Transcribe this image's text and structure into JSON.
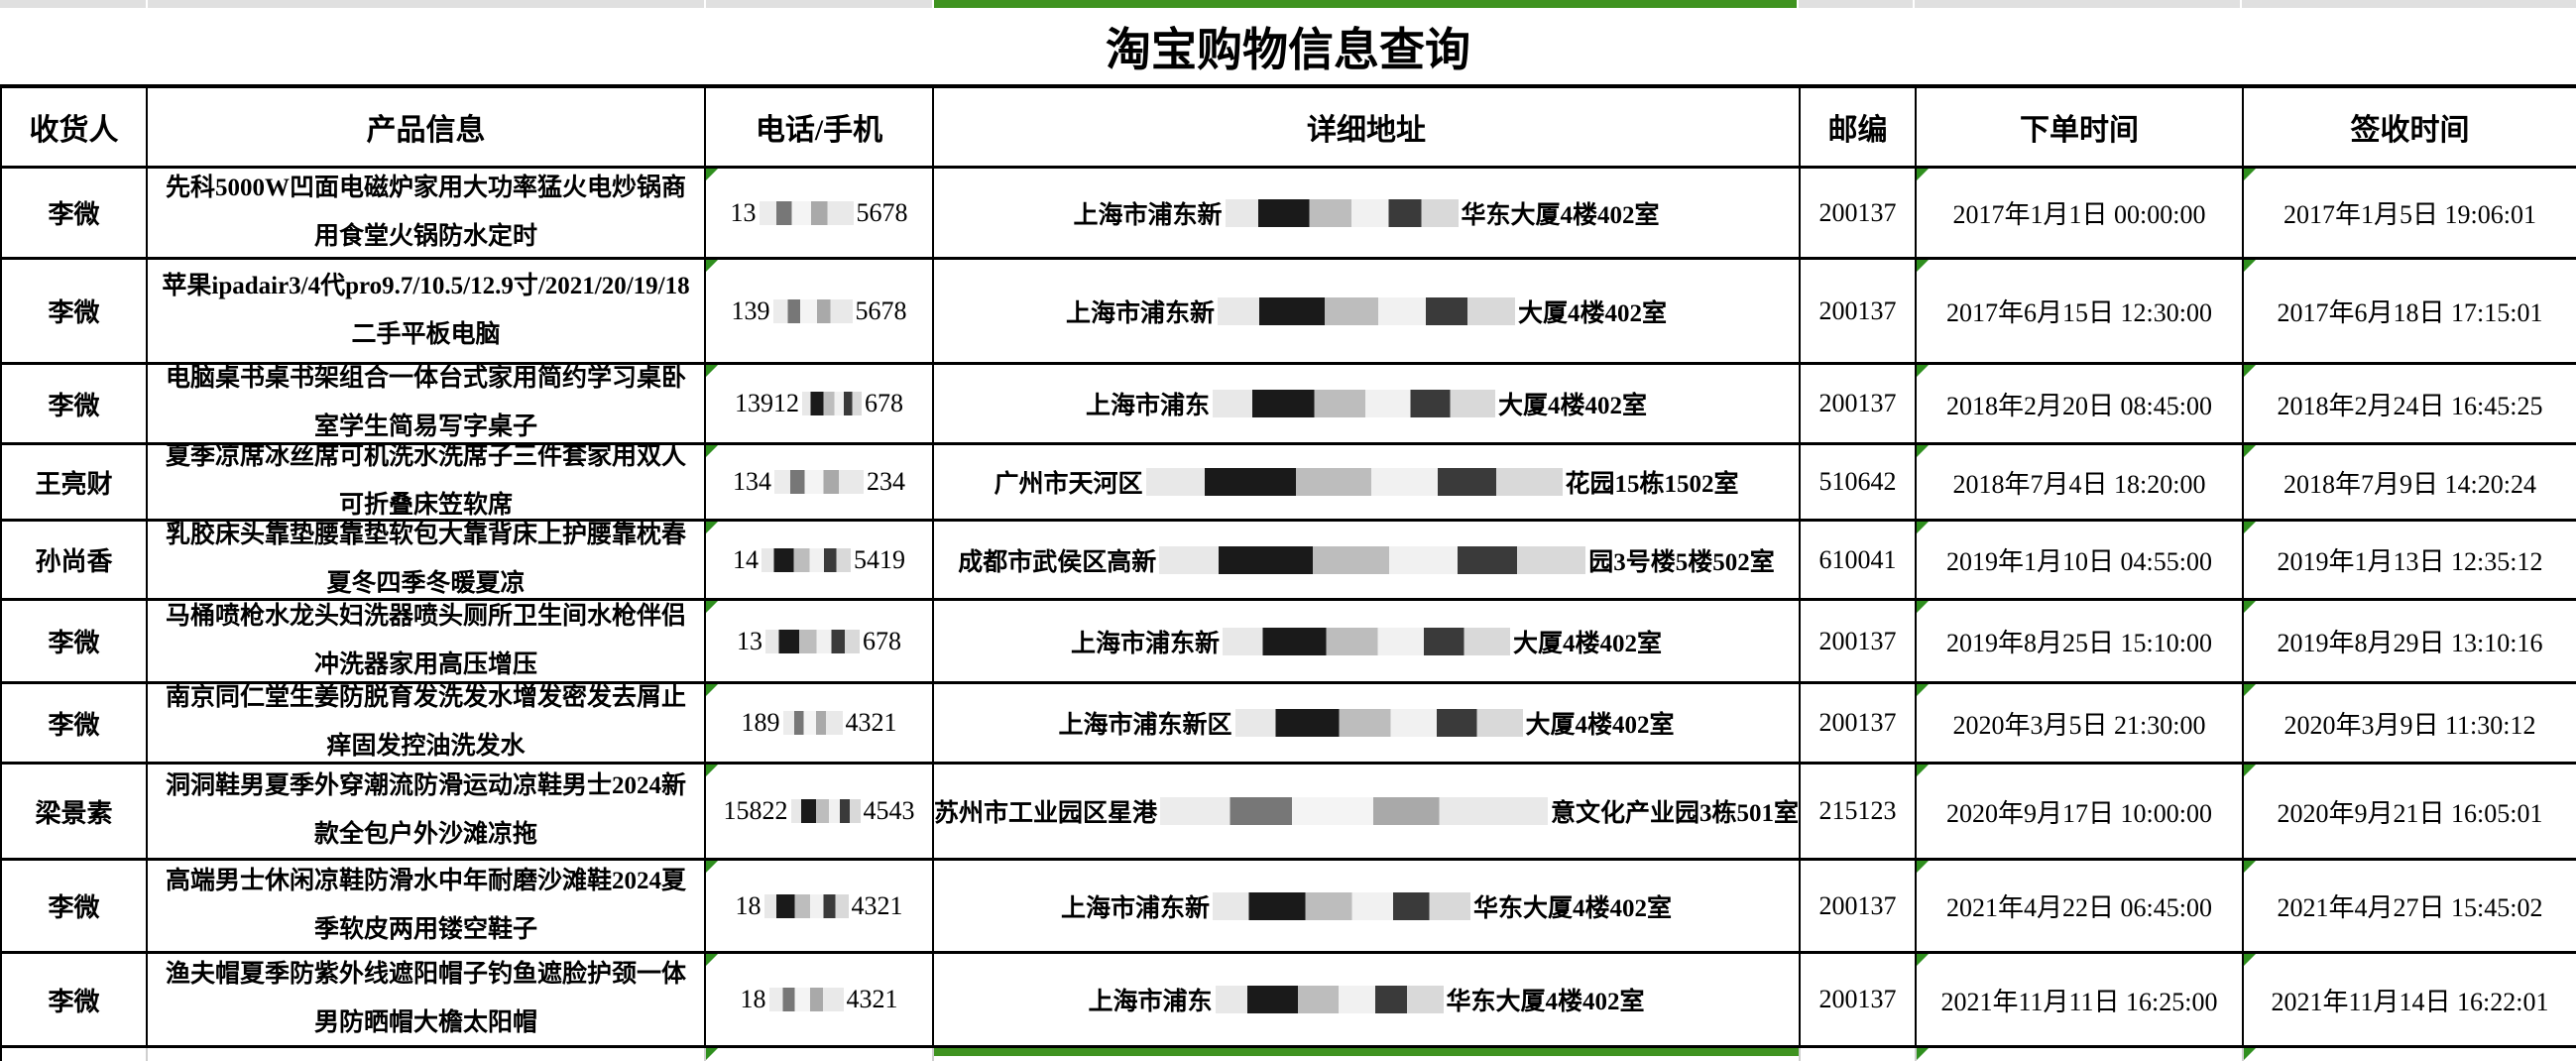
{
  "sheet": {
    "title": "淘宝购物信息查询",
    "accent_green": "#3f9320",
    "strip_gray": "#e0e0e0"
  },
  "columns": [
    "收货人",
    "产品信息",
    "电话/手机",
    "详细地址",
    "邮编",
    "下单时间",
    "签收时间"
  ],
  "rows": [
    {
      "recipient": "李微",
      "product": "先科5000W凹面电磁炉家用大功率猛火电炒锅商用食堂火锅防水定时",
      "phone_prefix": "13",
      "phone_suffix": "5678",
      "phone_mask_w": 95,
      "phone_mask_style": "a",
      "addr_prefix": "上海市浦东新",
      "addr_suffix": "华东大厦4楼402室",
      "addr_mask_w": 235,
      "addr_mask_style": "b",
      "zip": "200137",
      "order_time": "2017年1月1日 00:00:00",
      "sign_time": "2017年1月5日 19:06:01"
    },
    {
      "recipient": "李微",
      "product": "苹果ipadair3/4代pro9.7/10.5/12.9寸/2021/20/19/18二手平板电脑",
      "phone_prefix": "139",
      "phone_suffix": "5678",
      "phone_mask_w": 80,
      "phone_mask_style": "a",
      "addr_prefix": "上海市浦东新",
      "addr_suffix": "大厦4楼402室",
      "addr_mask_w": 300,
      "addr_mask_style": "b",
      "zip": "200137",
      "order_time": "2017年6月15日 12:30:00",
      "sign_time": "2017年6月18日 17:15:01"
    },
    {
      "recipient": "李微",
      "product": "电脑桌书桌书架组合一体台式家用简约学习桌卧室学生简易写字桌子",
      "phone_prefix": "13912",
      "phone_suffix": "678",
      "phone_mask_w": 60,
      "phone_mask_style": "b",
      "addr_prefix": "上海市浦东",
      "addr_suffix": "大厦4楼402室",
      "addr_mask_w": 285,
      "addr_mask_style": "b",
      "zip": "200137",
      "order_time": "2018年2月20日 08:45:00",
      "sign_time": "2018年2月24日 16:45:25"
    },
    {
      "recipient": "王亮财",
      "product": "夏季凉席冰丝席可机洗水洗席子三件套家用双人可折叠床笠软席",
      "phone_prefix": "134",
      "phone_suffix": "234",
      "phone_mask_w": 90,
      "phone_mask_style": "a",
      "addr_prefix": "广州市天河区",
      "addr_suffix": "花园15栋1502室",
      "addr_mask_w": 420,
      "addr_mask_style": "b",
      "zip": "510642",
      "order_time": "2018年7月4日 18:20:00",
      "sign_time": "2018年7月9日 14:20:24"
    },
    {
      "recipient": "孙尚香",
      "product": "乳胶床头靠垫腰靠垫软包大靠背床上护腰靠枕春夏冬四季冬暖夏凉",
      "phone_prefix": "14",
      "phone_suffix": "5419",
      "phone_mask_w": 90,
      "phone_mask_style": "b",
      "addr_prefix": "成都市武侯区高新",
      "addr_suffix": "园3号楼5楼502室",
      "addr_mask_w": 430,
      "addr_mask_style": "b",
      "zip": "610041",
      "order_time": "2019年1月10日 04:55:00",
      "sign_time": "2019年1月13日 12:35:12"
    },
    {
      "recipient": "李微",
      "product": "马桶喷枪水龙头妇洗器喷头厕所卫生间水枪伴侣冲洗器家用高压增压",
      "phone_prefix": "13",
      "phone_suffix": "678",
      "phone_mask_w": 95,
      "phone_mask_style": "b",
      "addr_prefix": "上海市浦东新",
      "addr_suffix": "大厦4楼402室",
      "addr_mask_w": 290,
      "addr_mask_style": "b",
      "zip": "200137",
      "order_time": "2019年8月25日 15:10:00",
      "sign_time": "2019年8月29日 13:10:16"
    },
    {
      "recipient": "李微",
      "product": "南京同仁堂生姜防脱育发洗发水增发密发去屑止痒固发控油洗发水",
      "phone_prefix": "189",
      "phone_suffix": "4321",
      "phone_mask_w": 60,
      "phone_mask_style": "a",
      "addr_prefix": "上海市浦东新区",
      "addr_suffix": "大厦4楼402室",
      "addr_mask_w": 290,
      "addr_mask_style": "b",
      "zip": "200137",
      "order_time": "2020年3月5日 21:30:00",
      "sign_time": "2020年3月9日 11:30:12"
    },
    {
      "recipient": "梁景素",
      "product": "洞洞鞋男夏季外穿潮流防滑运动凉鞋男士2024新款全包户外沙滩凉拖",
      "phone_prefix": "15822",
      "phone_suffix": "4543",
      "phone_mask_w": 70,
      "phone_mask_style": "b",
      "addr_prefix": "苏州市工业园区星港",
      "addr_suffix": "意文化产业园3栋501室",
      "addr_mask_w": 420,
      "addr_mask_style": "a",
      "zip": "215123",
      "order_time": "2020年9月17日 10:00:00",
      "sign_time": "2020年9月21日 16:05:01"
    },
    {
      "recipient": "李微",
      "product": "高端男士休闲凉鞋防滑水中年耐磨沙滩鞋2024夏季软皮两用镂空鞋子",
      "phone_prefix": "18",
      "phone_suffix": "4321",
      "phone_mask_w": 85,
      "phone_mask_style": "b",
      "addr_prefix": "上海市浦东新",
      "addr_suffix": "华东大厦4楼402室",
      "addr_mask_w": 260,
      "addr_mask_style": "b",
      "zip": "200137",
      "order_time": "2021年4月22日 06:45:00",
      "sign_time": "2021年4月27日 15:45:02"
    },
    {
      "recipient": "李微",
      "product": "渔夫帽夏季防紫外线遮阳帽子钓鱼遮脸护颈一体男防晒帽大檐太阳帽",
      "phone_prefix": "18",
      "phone_suffix": "4321",
      "phone_mask_w": 75,
      "phone_mask_style": "a",
      "addr_prefix": "上海市浦东",
      "addr_suffix": "华东大厦4楼402室",
      "addr_mask_w": 230,
      "addr_mask_style": "b",
      "zip": "200137",
      "order_time": "2021年11月11日 16:25:00",
      "sign_time": "2021年11月14日 16:22:01"
    }
  ]
}
